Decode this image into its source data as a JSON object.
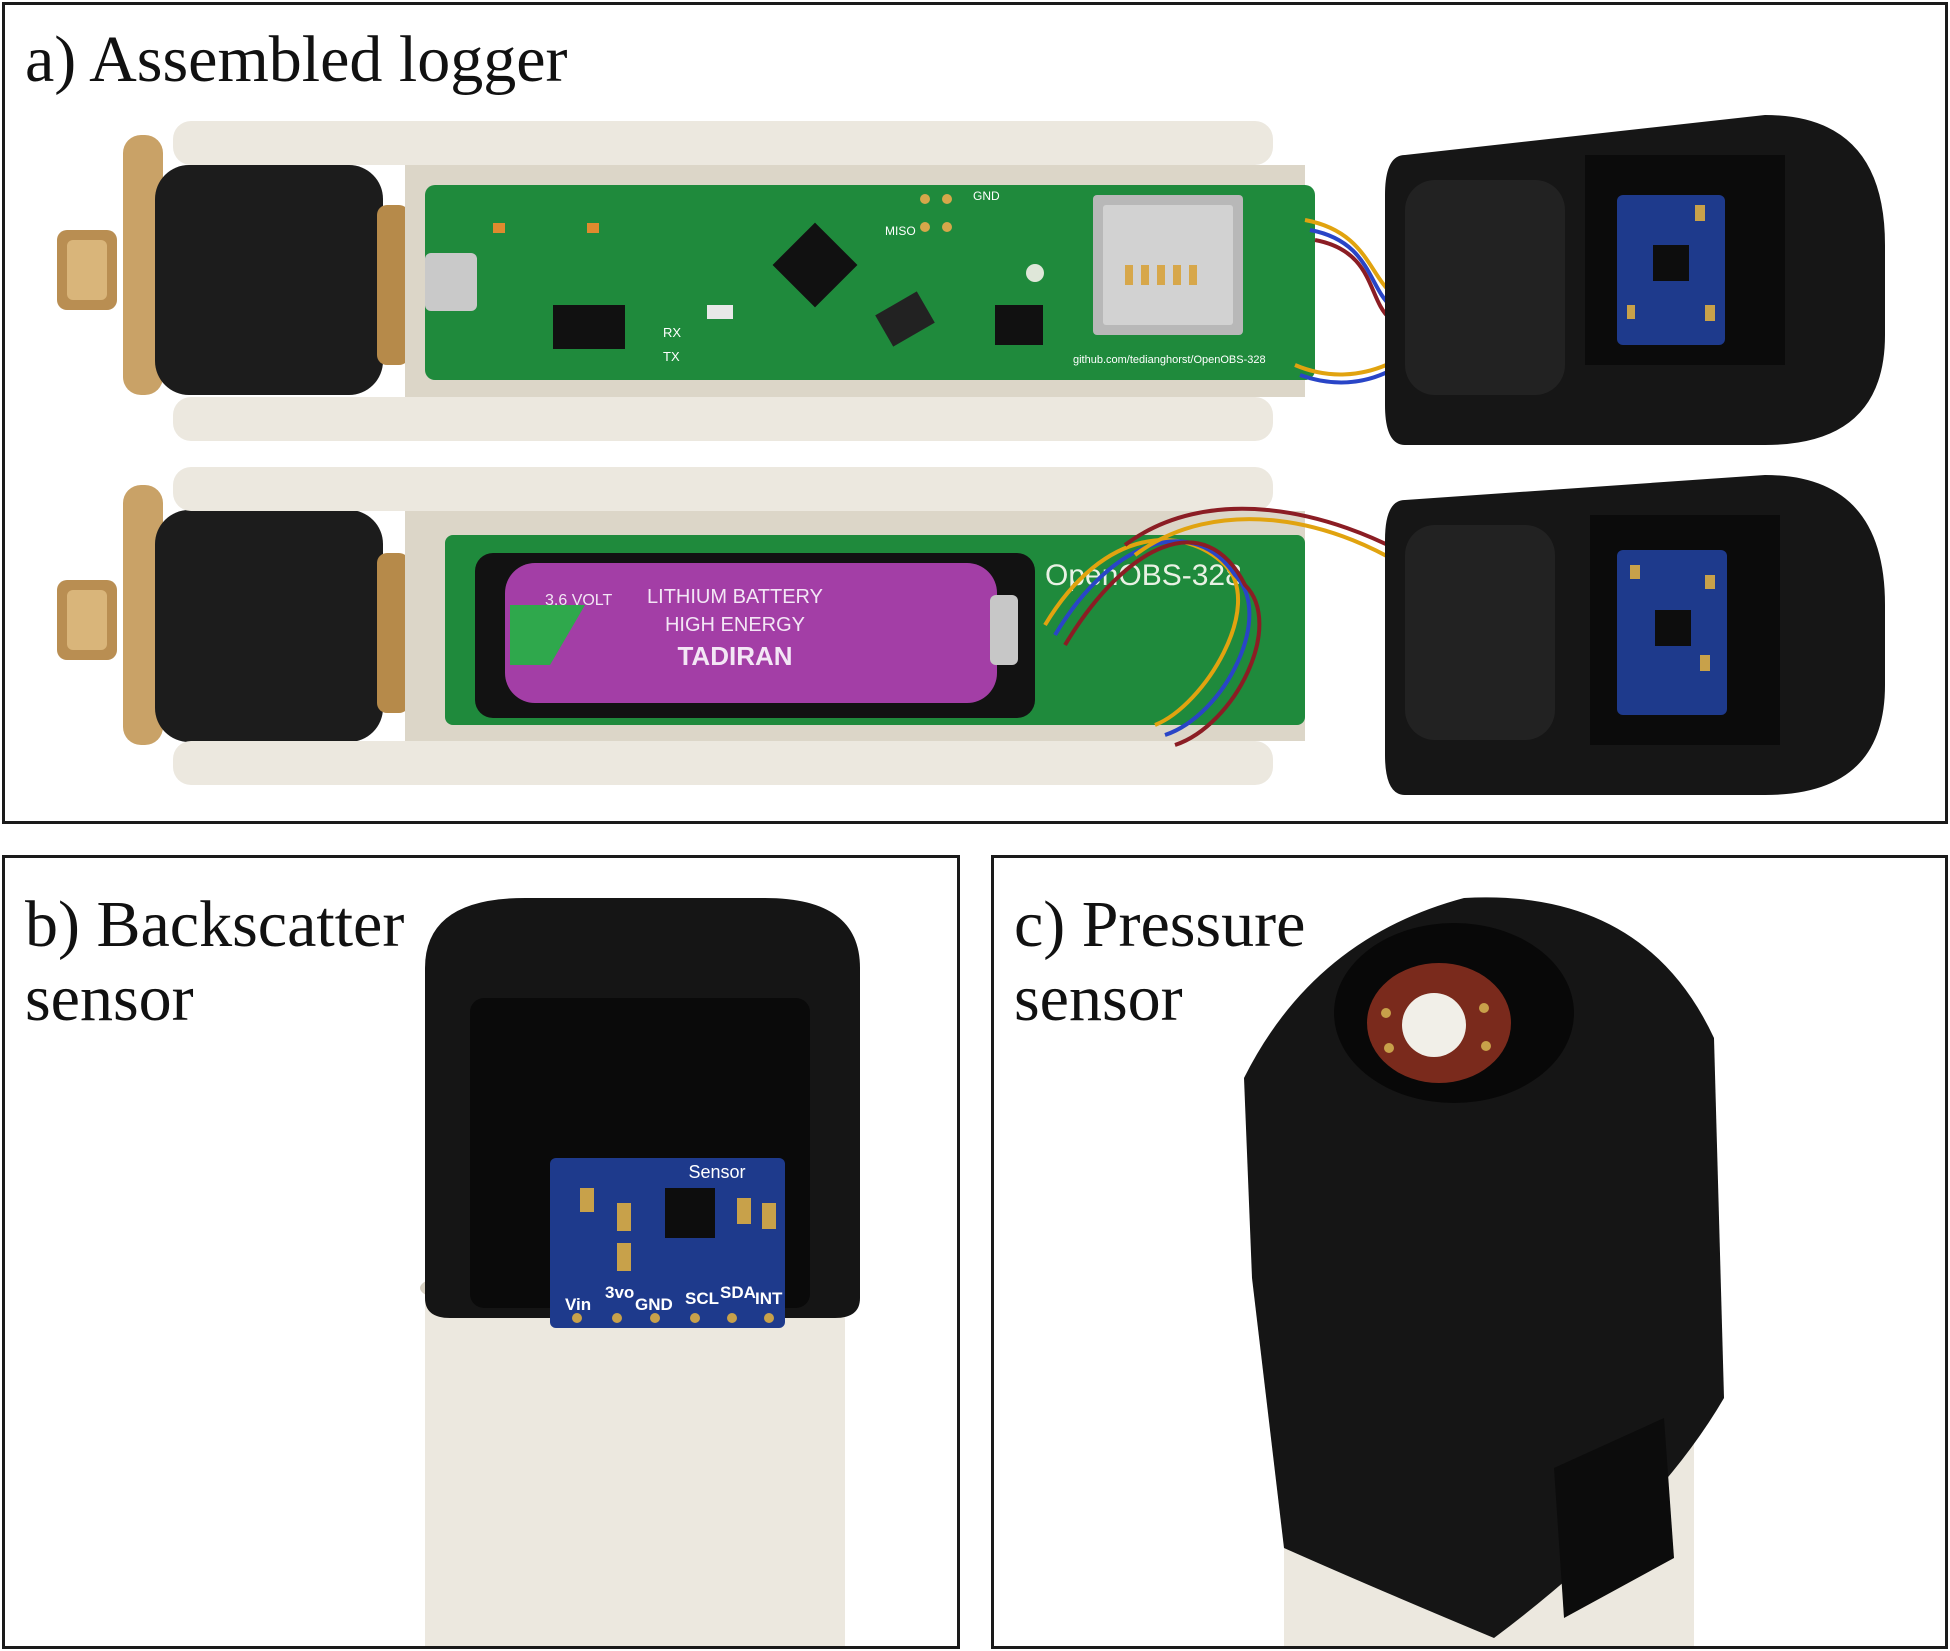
{
  "panels": {
    "a": {
      "caption": "a) Assembled logger"
    },
    "b": {
      "caption": "b) Backscatter\nsensor"
    },
    "c": {
      "caption": "c) Pressure\nsensor"
    }
  },
  "board_top": {
    "url_text": "github.com/tedianghorst/OpenOBS-328",
    "tx": "TX",
    "rx": "RX",
    "miso": "MISO",
    "gnd": "GND"
  },
  "board_bottom": {
    "name": "OpenOBS-328"
  },
  "battery": {
    "brand": "TADIRAN",
    "line1": "HIGH ENERGY",
    "line2": "LITHIUM BATTERY",
    "volt": "3.6 VOLT"
  },
  "sensor_pins": [
    "Vin",
    "3vo",
    "GND",
    "SCL",
    "SDA",
    "INT"
  ],
  "sensor_label": "Sensor",
  "colors": {
    "pcb_green": "#1f8a3c",
    "battery_purple": "#a33ea6",
    "endcap_black": "#161616",
    "tube_white": "#ece8df",
    "sensor_blue": "#1e3a8c",
    "brass": "#c9a267"
  }
}
